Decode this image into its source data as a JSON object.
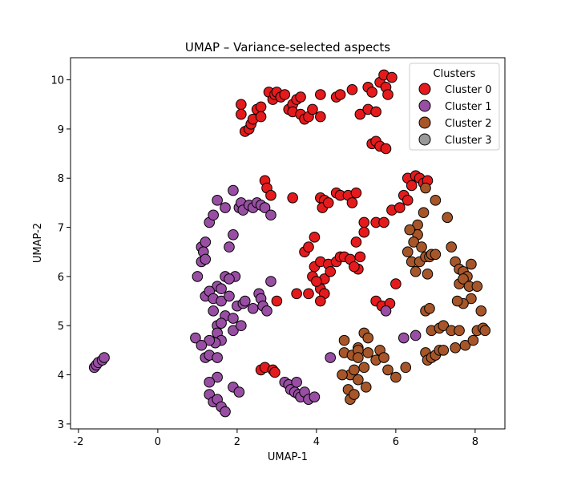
{
  "chart_data": {
    "type": "scatter",
    "title": "UMAP – Variance-selected aspects",
    "xlabel": "UMAP-1",
    "ylabel": "UMAP-2",
    "xlim": [
      -2.2,
      8.75
    ],
    "ylim": [
      2.9,
      10.45
    ],
    "xticks": [
      -2,
      0,
      2,
      4,
      6,
      8
    ],
    "yticks": [
      3,
      4,
      5,
      6,
      7,
      8,
      9,
      10
    ],
    "grid": false,
    "legend": {
      "title": "Clusters",
      "placement": "top-right"
    },
    "series": [
      {
        "name": "Cluster 0",
        "color": "#e41a1c",
        "points": [
          [
            2.1,
            9.5
          ],
          [
            2.1,
            9.3
          ],
          [
            2.2,
            8.95
          ],
          [
            2.3,
            9.0
          ],
          [
            2.35,
            9.1
          ],
          [
            2.4,
            9.2
          ],
          [
            2.5,
            9.4
          ],
          [
            2.6,
            9.45
          ],
          [
            2.6,
            9.25
          ],
          [
            2.8,
            9.75
          ],
          [
            2.9,
            9.6
          ],
          [
            2.95,
            9.7
          ],
          [
            3.0,
            9.75
          ],
          [
            3.1,
            9.65
          ],
          [
            3.2,
            9.7
          ],
          [
            3.3,
            9.4
          ],
          [
            3.4,
            9.5
          ],
          [
            3.4,
            9.35
          ],
          [
            3.5,
            9.6
          ],
          [
            3.6,
            9.65
          ],
          [
            3.6,
            9.3
          ],
          [
            3.7,
            9.2
          ],
          [
            3.8,
            9.25
          ],
          [
            3.9,
            9.4
          ],
          [
            4.1,
            9.7
          ],
          [
            4.1,
            9.25
          ],
          [
            4.5,
            9.65
          ],
          [
            4.6,
            9.7
          ],
          [
            4.9,
            9.8
          ],
          [
            5.1,
            9.3
          ],
          [
            5.3,
            9.85
          ],
          [
            5.3,
            9.4
          ],
          [
            5.4,
            9.75
          ],
          [
            5.5,
            9.35
          ],
          [
            5.6,
            9.95
          ],
          [
            5.7,
            10.1
          ],
          [
            5.75,
            9.85
          ],
          [
            5.8,
            9.7
          ],
          [
            5.9,
            10.05
          ],
          [
            5.4,
            8.7
          ],
          [
            5.5,
            8.75
          ],
          [
            5.6,
            8.65
          ],
          [
            5.75,
            8.6
          ],
          [
            2.7,
            7.95
          ],
          [
            2.75,
            7.8
          ],
          [
            2.85,
            7.65
          ],
          [
            3.4,
            7.6
          ],
          [
            4.1,
            7.6
          ],
          [
            4.2,
            7.55
          ],
          [
            4.15,
            7.4
          ],
          [
            4.3,
            7.5
          ],
          [
            4.5,
            7.7
          ],
          [
            4.6,
            7.65
          ],
          [
            4.8,
            7.65
          ],
          [
            4.9,
            7.5
          ],
          [
            5.0,
            7.7
          ],
          [
            5.2,
            7.1
          ],
          [
            5.5,
            7.1
          ],
          [
            5.7,
            7.1
          ],
          [
            5.9,
            7.35
          ],
          [
            6.1,
            7.4
          ],
          [
            6.2,
            7.65
          ],
          [
            6.3,
            8.0
          ],
          [
            6.4,
            7.85
          ],
          [
            6.5,
            8.05
          ],
          [
            6.6,
            8.0
          ],
          [
            6.7,
            7.9
          ],
          [
            6.8,
            7.95
          ],
          [
            6.3,
            7.55
          ],
          [
            5.2,
            6.9
          ],
          [
            5.0,
            6.7
          ],
          [
            3.7,
            6.5
          ],
          [
            3.8,
            6.6
          ],
          [
            3.95,
            6.8
          ],
          [
            3.95,
            6.2
          ],
          [
            3.9,
            6.0
          ],
          [
            4.1,
            6.3
          ],
          [
            4.2,
            5.95
          ],
          [
            4.3,
            6.25
          ],
          [
            4.35,
            6.1
          ],
          [
            4.5,
            6.3
          ],
          [
            4.6,
            6.4
          ],
          [
            4.7,
            6.4
          ],
          [
            4.85,
            6.35
          ],
          [
            5.05,
            6.15
          ],
          [
            5.1,
            6.4
          ],
          [
            4.95,
            6.2
          ],
          [
            4.1,
            5.75
          ],
          [
            4.0,
            5.9
          ],
          [
            4.2,
            5.65
          ],
          [
            4.1,
            5.5
          ],
          [
            3.8,
            5.65
          ],
          [
            3.5,
            5.65
          ],
          [
            3.0,
            5.5
          ],
          [
            2.6,
            4.1
          ],
          [
            2.7,
            4.15
          ],
          [
            2.9,
            4.1
          ],
          [
            2.95,
            4.05
          ],
          [
            6.0,
            5.85
          ],
          [
            5.5,
            5.5
          ],
          [
            5.65,
            5.4
          ],
          [
            5.85,
            5.45
          ]
        ]
      },
      {
        "name": "Cluster 1",
        "color": "#984ea3",
        "points": [
          [
            -1.6,
            4.15
          ],
          [
            -1.55,
            4.2
          ],
          [
            -1.5,
            4.25
          ],
          [
            -1.4,
            4.3
          ],
          [
            -1.35,
            4.35
          ],
          [
            1.1,
            6.6
          ],
          [
            1.15,
            6.5
          ],
          [
            1.2,
            6.7
          ],
          [
            1.1,
            6.3
          ],
          [
            1.2,
            6.35
          ],
          [
            1.3,
            7.1
          ],
          [
            1.4,
            7.25
          ],
          [
            1.5,
            7.55
          ],
          [
            1.7,
            7.4
          ],
          [
            1.9,
            7.75
          ],
          [
            2.05,
            7.4
          ],
          [
            2.1,
            7.5
          ],
          [
            2.15,
            7.35
          ],
          [
            2.3,
            7.45
          ],
          [
            2.4,
            7.4
          ],
          [
            2.5,
            7.5
          ],
          [
            2.6,
            7.45
          ],
          [
            2.7,
            7.4
          ],
          [
            2.85,
            7.25
          ],
          [
            1.0,
            6.0
          ],
          [
            1.8,
            6.6
          ],
          [
            1.9,
            6.85
          ],
          [
            1.7,
            6.0
          ],
          [
            1.95,
            6.0
          ],
          [
            1.5,
            5.8
          ],
          [
            1.6,
            5.75
          ],
          [
            1.8,
            5.95
          ],
          [
            1.2,
            5.6
          ],
          [
            1.3,
            5.7
          ],
          [
            1.4,
            5.55
          ],
          [
            1.6,
            5.5
          ],
          [
            1.8,
            5.6
          ],
          [
            2.0,
            5.4
          ],
          [
            2.15,
            5.45
          ],
          [
            2.2,
            5.5
          ],
          [
            2.4,
            5.35
          ],
          [
            2.55,
            5.65
          ],
          [
            2.6,
            5.55
          ],
          [
            2.65,
            5.4
          ],
          [
            2.75,
            5.3
          ],
          [
            2.85,
            5.9
          ],
          [
            1.4,
            5.3
          ],
          [
            1.7,
            5.2
          ],
          [
            1.9,
            5.15
          ],
          [
            1.5,
            5.0
          ],
          [
            1.6,
            5.05
          ],
          [
            1.5,
            4.85
          ],
          [
            1.6,
            4.7
          ],
          [
            1.45,
            4.65
          ],
          [
            1.3,
            4.7
          ],
          [
            1.9,
            4.9
          ],
          [
            2.1,
            5.0
          ],
          [
            0.95,
            4.75
          ],
          [
            1.1,
            4.6
          ],
          [
            1.2,
            4.35
          ],
          [
            1.3,
            4.4
          ],
          [
            1.5,
            4.35
          ],
          [
            1.5,
            3.95
          ],
          [
            1.3,
            3.85
          ],
          [
            1.3,
            3.6
          ],
          [
            1.4,
            3.45
          ],
          [
            1.5,
            3.5
          ],
          [
            1.6,
            3.35
          ],
          [
            1.7,
            3.25
          ],
          [
            1.9,
            3.75
          ],
          [
            2.05,
            3.65
          ],
          [
            3.2,
            3.85
          ],
          [
            3.3,
            3.8
          ],
          [
            3.35,
            3.7
          ],
          [
            3.45,
            3.65
          ],
          [
            3.5,
            3.85
          ],
          [
            3.55,
            3.6
          ],
          [
            3.6,
            3.55
          ],
          [
            3.7,
            3.65
          ],
          [
            3.8,
            3.5
          ],
          [
            3.95,
            3.55
          ],
          [
            4.35,
            4.35
          ],
          [
            6.2,
            4.75
          ],
          [
            6.5,
            4.8
          ],
          [
            5.75,
            5.3
          ]
        ]
      },
      {
        "name": "Cluster 2",
        "color": "#a65628",
        "points": [
          [
            6.75,
            7.8
          ],
          [
            6.7,
            7.3
          ],
          [
            6.55,
            7.05
          ],
          [
            6.55,
            6.85
          ],
          [
            6.35,
            6.95
          ],
          [
            6.45,
            6.7
          ],
          [
            6.65,
            6.6
          ],
          [
            6.3,
            6.5
          ],
          [
            6.4,
            6.3
          ],
          [
            6.5,
            6.1
          ],
          [
            6.6,
            6.3
          ],
          [
            6.75,
            6.4
          ],
          [
            6.8,
            6.05
          ],
          [
            6.85,
            6.4
          ],
          [
            6.9,
            6.45
          ],
          [
            7.0,
            7.55
          ],
          [
            7.3,
            7.2
          ],
          [
            7.0,
            6.45
          ],
          [
            7.4,
            6.6
          ],
          [
            7.5,
            6.3
          ],
          [
            7.6,
            6.15
          ],
          [
            7.7,
            6.1
          ],
          [
            7.8,
            6.0
          ],
          [
            7.9,
            6.25
          ],
          [
            7.6,
            5.85
          ],
          [
            7.7,
            5.95
          ],
          [
            7.85,
            5.8
          ],
          [
            7.9,
            5.55
          ],
          [
            7.7,
            5.45
          ],
          [
            7.55,
            5.5
          ],
          [
            8.05,
            5.8
          ],
          [
            8.15,
            5.3
          ],
          [
            6.75,
            5.3
          ],
          [
            6.85,
            5.35
          ],
          [
            6.9,
            4.9
          ],
          [
            7.1,
            4.95
          ],
          [
            7.2,
            5.0
          ],
          [
            7.4,
            4.9
          ],
          [
            7.6,
            4.9
          ],
          [
            7.5,
            4.55
          ],
          [
            7.75,
            4.6
          ],
          [
            7.95,
            4.7
          ],
          [
            8.05,
            4.9
          ],
          [
            8.2,
            4.95
          ],
          [
            8.25,
            4.9
          ],
          [
            6.75,
            4.45
          ],
          [
            6.8,
            4.3
          ],
          [
            6.9,
            4.35
          ],
          [
            7.0,
            4.4
          ],
          [
            7.1,
            4.5
          ],
          [
            7.2,
            4.5
          ],
          [
            4.7,
            4.7
          ],
          [
            4.7,
            4.45
          ],
          [
            4.85,
            4.0
          ],
          [
            4.9,
            4.4
          ],
          [
            5.05,
            4.55
          ],
          [
            5.05,
            4.5
          ],
          [
            5.2,
            4.85
          ],
          [
            5.3,
            4.75
          ],
          [
            5.3,
            4.45
          ],
          [
            5.5,
            4.3
          ],
          [
            5.6,
            4.5
          ],
          [
            5.7,
            4.35
          ],
          [
            5.8,
            4.1
          ],
          [
            6.0,
            3.95
          ],
          [
            6.25,
            4.15
          ],
          [
            5.2,
            4.15
          ],
          [
            5.05,
            4.35
          ],
          [
            4.95,
            4.1
          ],
          [
            4.65,
            4.0
          ],
          [
            4.8,
            3.7
          ],
          [
            4.85,
            3.5
          ],
          [
            4.95,
            3.6
          ],
          [
            5.05,
            3.9
          ],
          [
            5.25,
            3.75
          ]
        ]
      },
      {
        "name": "Cluster 3",
        "color": "#999999",
        "points": []
      }
    ]
  }
}
